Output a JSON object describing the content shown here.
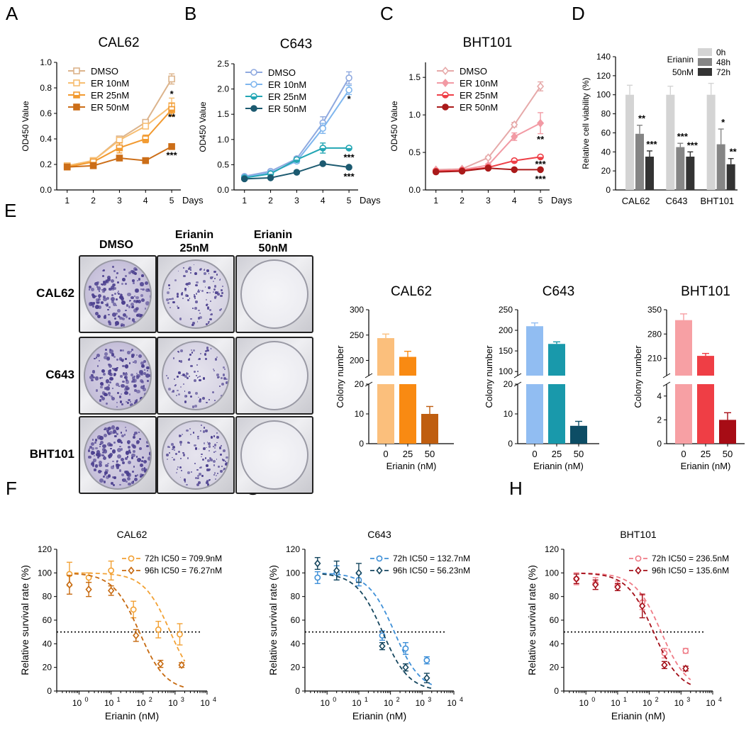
{
  "panel_labels": {
    "A": "A",
    "B": "B",
    "C": "C",
    "D": "D",
    "E": "E",
    "F": "F",
    "G": "G",
    "H": "H"
  },
  "colony_images": {
    "columns": [
      "DMSO",
      "Erianin\n25nM",
      "Erianin\n50nM"
    ],
    "rows": [
      "CAL62",
      "C643",
      "BHT101"
    ]
  },
  "chart_data": [
    {
      "id": "A",
      "type": "line",
      "title": "CAL62",
      "ylabel": "OD450 Value",
      "xlabel": "Days",
      "x": [
        1,
        2,
        3,
        4,
        5
      ],
      "ylim": [
        0,
        1.0
      ],
      "yticks": [
        "0.0",
        "0.2",
        "0.4",
        "0.6",
        "0.8",
        "1.0"
      ],
      "ytick_values": [
        0,
        0.2,
        0.4,
        0.6,
        0.8,
        1.0
      ],
      "series": [
        {
          "name": "DMSO",
          "color": "#dcb48c",
          "marker": "square-open",
          "values": [
            0.19,
            0.23,
            0.4,
            0.53,
            0.87
          ],
          "err": [
            0.01,
            0.01,
            0.02,
            0.02,
            0.04
          ]
        },
        {
          "name": "ER 10nM",
          "color": "#f7be72",
          "marker": "square-open",
          "values": [
            0.19,
            0.23,
            0.39,
            0.5,
            0.66
          ],
          "err": [
            0.01,
            0.01,
            0.02,
            0.02,
            0.06
          ]
        },
        {
          "name": "ER 25nM",
          "color": "#f29a30",
          "marker": "square-half",
          "values": [
            0.18,
            0.22,
            0.33,
            0.4,
            0.63
          ],
          "err": [
            0.01,
            0.01,
            0.04,
            0.03,
            0.05
          ]
        },
        {
          "name": "ER 50nM",
          "color": "#cc6e18",
          "marker": "square",
          "values": [
            0.18,
            0.19,
            0.25,
            0.23,
            0.34
          ],
          "err": [
            0.01,
            0.01,
            0.01,
            0.01,
            0.01
          ]
        }
      ],
      "annotations": [
        {
          "x": 5,
          "y": 0.75,
          "text": "*"
        },
        {
          "x": 5,
          "y": 0.57,
          "text": "**"
        },
        {
          "x": 5,
          "y": 0.27,
          "text": "***"
        }
      ]
    },
    {
      "id": "B",
      "type": "line",
      "title": "C643",
      "ylabel": "OD450 Value",
      "xlabel": "Days",
      "x": [
        1,
        2,
        3,
        4,
        5
      ],
      "ylim": [
        0,
        2.5
      ],
      "yticks": [
        "0.0",
        "0.5",
        "1.0",
        "1.5",
        "2.0",
        "2.5"
      ],
      "ytick_values": [
        0,
        0.5,
        1.0,
        1.5,
        2.0,
        2.5
      ],
      "series": [
        {
          "name": "DMSO",
          "color": "#8fa9df",
          "marker": "circle-open",
          "values": [
            0.27,
            0.37,
            0.62,
            1.33,
            2.22
          ],
          "err": [
            0.02,
            0.02,
            0.04,
            0.12,
            0.12
          ]
        },
        {
          "name": "ER 10nM",
          "color": "#7fb6ee",
          "marker": "circle-open",
          "values": [
            0.25,
            0.34,
            0.57,
            1.22,
            1.98
          ],
          "err": [
            0.02,
            0.02,
            0.04,
            0.1,
            0.09
          ]
        },
        {
          "name": "ER 25nM",
          "color": "#23a6b4",
          "marker": "circle-half",
          "values": [
            0.24,
            0.32,
            0.6,
            0.83,
            0.83
          ],
          "err": [
            0.01,
            0.02,
            0.03,
            0.1,
            0.03
          ]
        },
        {
          "name": "ER 50nM",
          "color": "#1c5a70",
          "marker": "circle",
          "values": [
            0.22,
            0.24,
            0.35,
            0.52,
            0.45
          ],
          "err": [
            0.01,
            0.01,
            0.02,
            0.02,
            0.02
          ]
        }
      ],
      "annotations": [
        {
          "x": 5,
          "y": 1.8,
          "text": "*"
        },
        {
          "x": 5,
          "y": 0.64,
          "text": "***"
        },
        {
          "x": 5,
          "y": 0.26,
          "text": "***"
        }
      ]
    },
    {
      "id": "C",
      "type": "line",
      "title": "BHT101",
      "ylabel": "OD450 Value",
      "xlabel": "Days",
      "x": [
        1,
        2,
        3,
        4,
        5
      ],
      "ylim": [
        0,
        1.7
      ],
      "yticks": [
        "0.0",
        "0.5",
        "1.0",
        "1.5"
      ],
      "ytick_values": [
        0,
        0.5,
        1.0,
        1.5
      ],
      "series": [
        {
          "name": "DMSO",
          "color": "#e6a9a9",
          "marker": "diamond-open",
          "values": [
            0.27,
            0.28,
            0.43,
            0.87,
            1.38
          ],
          "err": [
            0.01,
            0.01,
            0.02,
            0.03,
            0.06
          ]
        },
        {
          "name": "ER 10nM",
          "color": "#f29aa4",
          "marker": "diamond",
          "values": [
            0.26,
            0.27,
            0.33,
            0.71,
            0.89
          ],
          "err": [
            0.01,
            0.01,
            0.02,
            0.05,
            0.14
          ]
        },
        {
          "name": "ER 25nM",
          "color": "#ee3f47",
          "marker": "circle-half",
          "values": [
            0.25,
            0.26,
            0.3,
            0.39,
            0.44
          ],
          "err": [
            0.01,
            0.01,
            0.01,
            0.02,
            0.02
          ]
        },
        {
          "name": "ER 50nM",
          "color": "#aa1a1a",
          "marker": "circle",
          "values": [
            0.24,
            0.25,
            0.29,
            0.27,
            0.27
          ],
          "err": [
            0.01,
            0.01,
            0.01,
            0.01,
            0.01
          ]
        }
      ],
      "annotations": [
        {
          "x": 5,
          "y": 0.67,
          "text": "**"
        },
        {
          "x": 5,
          "y": 0.34,
          "text": "***"
        },
        {
          "x": 5,
          "y": 0.14,
          "text": "***"
        }
      ]
    },
    {
      "id": "D",
      "type": "bar",
      "title": "",
      "ylabel": "Relative cell viability (%)",
      "categories": [
        "CAL62",
        "C643",
        "BHT101"
      ],
      "ylim": [
        0,
        140
      ],
      "yticks": [
        "0",
        "20",
        "40",
        "60",
        "80",
        "100",
        "120",
        "140"
      ],
      "ytick_values": [
        0,
        20,
        40,
        60,
        80,
        100,
        120,
        140
      ],
      "legend_title": "Erianin\n50nM",
      "series": [
        {
          "name": "0h",
          "color": "#d4d4d4",
          "values": [
            100,
            100,
            100
          ],
          "err": [
            10,
            9,
            12
          ]
        },
        {
          "name": "48h",
          "color": "#858585",
          "values": [
            59,
            45,
            48
          ],
          "err": [
            9,
            4,
            16
          ]
        },
        {
          "name": "72h",
          "color": "#333333",
          "values": [
            35,
            35,
            27
          ],
          "err": [
            6,
            5,
            6
          ]
        }
      ],
      "annotations": [
        {
          "group": 0,
          "bar": 1,
          "text": "**"
        },
        {
          "group": 0,
          "bar": 2,
          "text": "***"
        },
        {
          "group": 1,
          "bar": 1,
          "text": "***"
        },
        {
          "group": 1,
          "bar": 2,
          "text": "***"
        },
        {
          "group": 2,
          "bar": 1,
          "text": "*"
        },
        {
          "group": 2,
          "bar": 2,
          "text": "**"
        }
      ]
    },
    {
      "id": "E1",
      "type": "bar",
      "title": "CAL62",
      "ylabel": "Colony number",
      "xlabel": "Erianin (nM)",
      "categories": [
        "0",
        "25",
        "50"
      ],
      "values": [
        244,
        207,
        10
      ],
      "err": [
        8,
        11,
        2.5
      ],
      "colors": [
        "#fbbf7c",
        "#f98a12",
        "#bf5e10"
      ],
      "broken_axis": {
        "upper": [
          170,
          300
        ],
        "upper_ticks": [
          200,
          250,
          300
        ],
        "lower": [
          0,
          20
        ],
        "lower_ticks": [
          0,
          10,
          20
        ]
      }
    },
    {
      "id": "E2",
      "type": "bar",
      "title": "C643",
      "ylabel": "Colony number",
      "xlabel": "Erianin (nM)",
      "categories": [
        "0",
        "25",
        "50"
      ],
      "values": [
        210,
        167,
        6
      ],
      "err": [
        8,
        5,
        1.5
      ],
      "colors": [
        "#91bdf2",
        "#1999ab",
        "#0d4d65"
      ],
      "broken_axis": {
        "upper": [
          90,
          250
        ],
        "upper_ticks": [
          100,
          150,
          200,
          250
        ],
        "lower": [
          0,
          20
        ],
        "lower_ticks": [
          0,
          10,
          20
        ]
      }
    },
    {
      "id": "E3",
      "type": "bar",
      "title": "BHT101",
      "ylabel": "Colony number",
      "xlabel": "Erianin (nM)",
      "categories": [
        "0",
        "25",
        "50"
      ],
      "values": [
        320,
        217,
        2
      ],
      "err": [
        18,
        7,
        0.6
      ],
      "colors": [
        "#f7a0a4",
        "#ef3e45",
        "#a70c15"
      ],
      "broken_axis": {
        "upper": [
          160,
          350
        ],
        "upper_ticks": [
          210,
          280,
          350
        ],
        "lower": [
          0,
          5
        ],
        "lower_ticks": [
          0,
          2,
          4
        ]
      }
    },
    {
      "id": "F",
      "type": "scatter",
      "title": "CAL62",
      "ylabel": "Relative survival rate (%)",
      "xlabel": "Erianin (nM)",
      "xscale": "log",
      "xlim": [
        0.2,
        10000
      ],
      "ylim": [
        0,
        120
      ],
      "xticks": [
        {
          "e": "0"
        },
        {
          "e": "1"
        },
        {
          "e": "2"
        },
        {
          "e": "3"
        },
        {
          "e": "4"
        }
      ],
      "yticks": [
        "0",
        "20",
        "40",
        "60",
        "80",
        "100",
        "120"
      ],
      "ytick_values": [
        0,
        20,
        40,
        60,
        80,
        100,
        120
      ],
      "reference_y": 50,
      "series": [
        {
          "name": "72h IC50 = 709.9nM",
          "color": "#f2a134",
          "marker": "circle-open",
          "ic50": 709.9,
          "x": [
            0.5,
            2,
            10,
            50,
            300,
            1400
          ],
          "values": [
            99,
            96,
            102,
            69,
            52,
            48
          ],
          "err": [
            10,
            4,
            8,
            7,
            7,
            9
          ]
        },
        {
          "name": "96h IC50 = 76.27nM",
          "color": "#c6690f",
          "marker": "diamond-open",
          "ic50": 76.27,
          "x": [
            0.5,
            2,
            10,
            60,
            350,
            1600
          ],
          "values": [
            90,
            86,
            85,
            47,
            23,
            22
          ],
          "err": [
            8,
            6,
            4,
            5,
            3,
            2
          ]
        }
      ]
    },
    {
      "id": "G",
      "type": "scatter",
      "title": "C643",
      "ylabel": "Relative survival rate (%)",
      "xlabel": "Erianin (nM)",
      "xscale": "log",
      "xlim": [
        0.2,
        10000
      ],
      "ylim": [
        0,
        120
      ],
      "xticks": [
        {
          "e": "0"
        },
        {
          "e": "1"
        },
        {
          "e": "2"
        },
        {
          "e": "3"
        },
        {
          "e": "4"
        }
      ],
      "yticks": [
        "0",
        "20",
        "40",
        "60",
        "80",
        "100",
        "120"
      ],
      "ytick_values": [
        0,
        20,
        40,
        60,
        80,
        100,
        120
      ],
      "reference_y": 50,
      "series": [
        {
          "name": "72h IC50 = 132.7nM",
          "color": "#3f90d8",
          "marker": "circle-open",
          "ic50": 132.7,
          "x": [
            0.5,
            2,
            10,
            55,
            300,
            1400
          ],
          "values": [
            96,
            100,
            94,
            47,
            36,
            26
          ],
          "err": [
            5,
            6,
            5,
            4,
            5,
            3
          ]
        },
        {
          "name": "96h IC50 = 56.23nM",
          "color": "#15465e",
          "marker": "diamond-open",
          "ic50": 56.23,
          "x": [
            0.5,
            2,
            10,
            55,
            300,
            1400
          ],
          "values": [
            108,
            102,
            100,
            38,
            20,
            11
          ],
          "err": [
            5,
            8,
            8,
            3,
            3,
            4
          ]
        }
      ]
    },
    {
      "id": "H",
      "type": "scatter",
      "title": "BHT101",
      "ylabel": "Relative survival rate (%)",
      "xlabel": "Erianin (nM)",
      "xscale": "log",
      "xlim": [
        0.2,
        10000
      ],
      "ylim": [
        0,
        120
      ],
      "xticks": [
        {
          "e": "0"
        },
        {
          "e": "1"
        },
        {
          "e": "2"
        },
        {
          "e": "3"
        },
        {
          "e": "4"
        }
      ],
      "yticks": [
        "0",
        "20",
        "40",
        "60",
        "80",
        "100",
        "120"
      ],
      "ytick_values": [
        0,
        20,
        40,
        60,
        80,
        100,
        120
      ],
      "reference_y": 50,
      "series": [
        {
          "name": "72h IC50 = 236.5nM",
          "color": "#ef7b86",
          "marker": "circle-open",
          "ic50": 236.5,
          "x": [
            0.5,
            2,
            10,
            60,
            300,
            1400
          ],
          "values": [
            95,
            91,
            89,
            75,
            32,
            34
          ],
          "err": [
            5,
            5,
            4,
            6,
            4,
            2
          ]
        },
        {
          "name": "96h IC50 = 135.6nM",
          "color": "#a30e18",
          "marker": "diamond-open",
          "ic50": 135.6,
          "x": [
            0.5,
            2,
            10,
            60,
            300,
            1400
          ],
          "values": [
            95,
            90,
            88,
            72,
            22,
            19
          ],
          "err": [
            4,
            4,
            3,
            10,
            3,
            2
          ]
        }
      ]
    }
  ]
}
